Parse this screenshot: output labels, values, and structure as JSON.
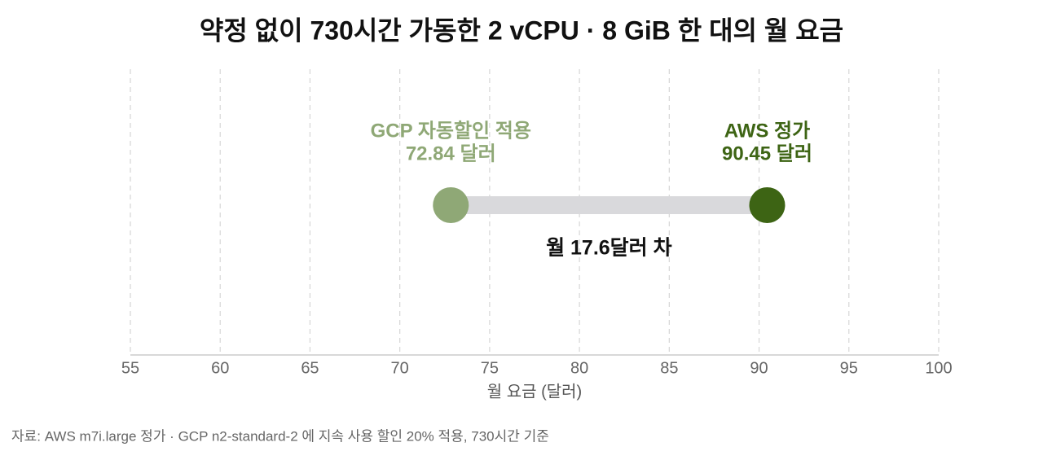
{
  "chart_data": {
    "type": "dumbbell",
    "title": "약정 없이 730시간 가동한 2 vCPU · 8 GiB 한 대의 월 요금",
    "xlabel": "월 요금 (달러)",
    "annotation": "월 17.6달러 차",
    "source": "자료: AWS m7i.large 정가 · GCP n2-standard-2 에 지속 사용 할인 20% 적용, 730시간 기준",
    "connector_color": "#d9d9dc",
    "series": [
      {
        "name": "GCP 자동할인 적용",
        "color": "#8fa876",
        "values": [
          72.84
        ],
        "value_labels": [
          "72.84 달러"
        ]
      },
      {
        "name": "AWS 정가",
        "color": "#3d6414",
        "values": [
          90.45
        ],
        "value_labels": [
          "90.45 달러"
        ]
      }
    ],
    "xlim": [
      55,
      100
    ],
    "xticks": [
      55,
      60,
      65,
      70,
      75,
      80,
      85,
      90,
      95,
      100
    ],
    "grid": true
  }
}
